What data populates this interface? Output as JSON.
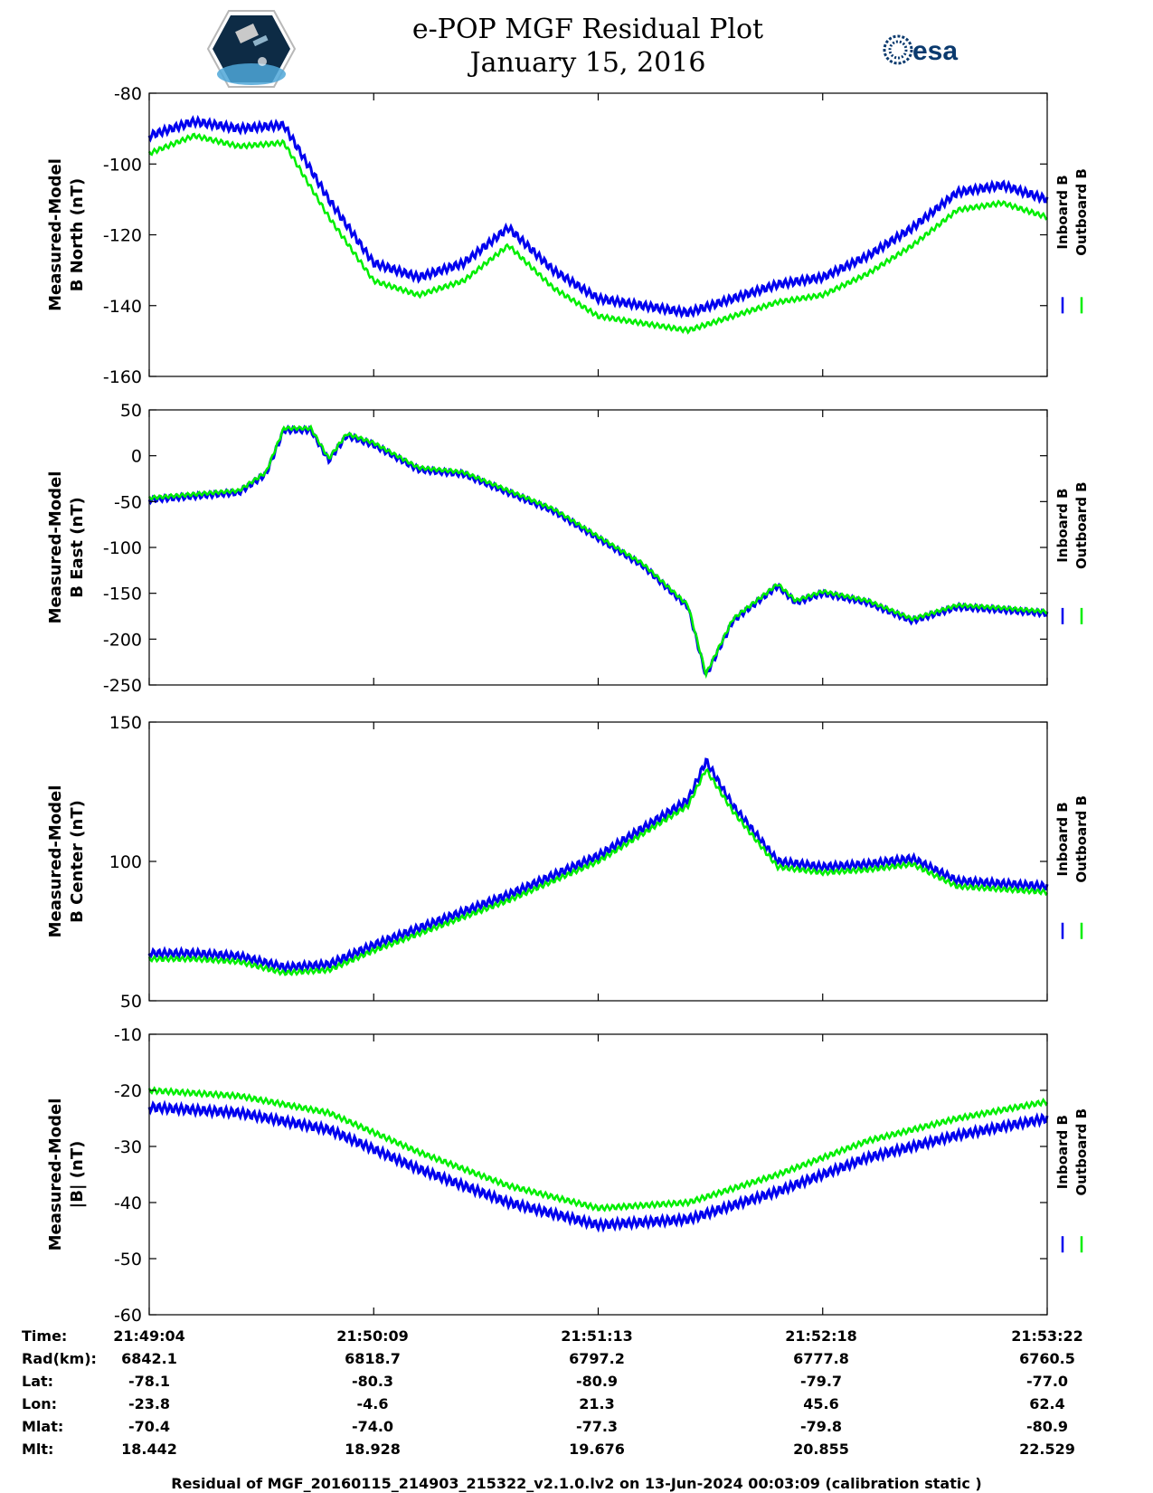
{
  "title": {
    "line1": "e-POP MGF Residual Plot",
    "line2": "January 15, 2016"
  },
  "logos": {
    "left": "cassiope-epop-logo",
    "right_text": "esa"
  },
  "colors": {
    "inboard": "#0000ee",
    "outboard": "#00ee00",
    "axis": "#000000"
  },
  "chart_data": [
    {
      "type": "line",
      "ylabel": [
        "Measured-Model",
        "B North (nT)"
      ],
      "ylim": [
        -160,
        -80
      ],
      "yticks": [
        -80,
        -100,
        -120,
        -140,
        -160
      ],
      "legend": [
        "Inboard B",
        "Outboard B"
      ],
      "x": [
        0,
        5,
        10,
        15,
        20,
        25,
        30,
        35,
        40,
        45,
        50,
        55,
        60,
        65,
        70,
        75,
        80,
        85,
        90,
        95,
        100
      ],
      "series": [
        {
          "name": "Inboard B",
          "values": [
            -92,
            -88,
            -90,
            -89,
            -110,
            -128,
            -132,
            -128,
            -118,
            -130,
            -138,
            -140,
            -142,
            -138,
            -134,
            -132,
            -126,
            -118,
            -108,
            -106,
            -110
          ]
        },
        {
          "name": "Outboard B",
          "values": [
            -97,
            -92,
            -95,
            -94,
            -115,
            -133,
            -137,
            -133,
            -123,
            -135,
            -143,
            -145,
            -147,
            -143,
            -139,
            -137,
            -131,
            -123,
            -113,
            -111,
            -115
          ]
        }
      ]
    },
    {
      "type": "line",
      "ylabel": [
        "Measured-Model",
        "B East (nT)"
      ],
      "ylim": [
        -250,
        50
      ],
      "yticks": [
        50,
        0,
        -50,
        -100,
        -150,
        -200,
        -250
      ],
      "legend": [
        "Inboard B",
        "Outboard B"
      ],
      "x": [
        0,
        5,
        10,
        13,
        15,
        18,
        20,
        22,
        25,
        30,
        35,
        40,
        45,
        50,
        55,
        60,
        62,
        65,
        70,
        72,
        75,
        80,
        85,
        90,
        95,
        100
      ],
      "series": [
        {
          "name": "Inboard B",
          "values": [
            -48,
            -44,
            -40,
            -20,
            28,
            28,
            -5,
            22,
            12,
            -15,
            -20,
            -40,
            -60,
            -90,
            -120,
            -165,
            -240,
            -180,
            -142,
            -160,
            -150,
            -160,
            -180,
            -165,
            -168,
            -172
          ]
        },
        {
          "name": "Outboard B",
          "values": [
            -46,
            -42,
            -38,
            -18,
            30,
            30,
            -3,
            24,
            14,
            -13,
            -18,
            -38,
            -58,
            -88,
            -118,
            -163,
            -238,
            -178,
            -140,
            -158,
            -148,
            -158,
            -178,
            -163,
            -166,
            -170
          ]
        }
      ]
    },
    {
      "type": "line",
      "ylabel": [
        "Measured-Model",
        "B Center (nT)"
      ],
      "ylim": [
        50,
        150
      ],
      "yticks": [
        150,
        100,
        50
      ],
      "legend": [
        "Inboard B",
        "Outboard B"
      ],
      "x": [
        0,
        5,
        10,
        15,
        20,
        25,
        30,
        35,
        40,
        45,
        50,
        55,
        60,
        62,
        65,
        70,
        75,
        80,
        85,
        90,
        95,
        100
      ],
      "series": [
        {
          "name": "Inboard B",
          "values": [
            67,
            67,
            66,
            62,
            63,
            70,
            76,
            82,
            88,
            95,
            102,
            112,
            122,
            136,
            120,
            100,
            98,
            99,
            101,
            93,
            92,
            91
          ]
        },
        {
          "name": "Outboard B",
          "values": [
            65,
            65,
            64,
            60,
            61,
            68,
            74,
            80,
            86,
            93,
            100,
            110,
            120,
            133,
            118,
            98,
            96,
            97,
            99,
            91,
            90,
            89
          ]
        }
      ]
    },
    {
      "type": "line",
      "ylabel": [
        "Measured-Model",
        "|B| (nT)"
      ],
      "ylim": [
        -60,
        -10
      ],
      "yticks": [
        -10,
        -20,
        -30,
        -40,
        -50,
        -60
      ],
      "legend": [
        "Inboard B",
        "Outboard B"
      ],
      "x": [
        0,
        10,
        20,
        30,
        40,
        50,
        60,
        70,
        80,
        90,
        100
      ],
      "series": [
        {
          "name": "Inboard B",
          "values": [
            -23,
            -24,
            -27,
            -34,
            -40,
            -44,
            -43,
            -38,
            -32,
            -28,
            -25
          ]
        },
        {
          "name": "Outboard B",
          "values": [
            -20,
            -21,
            -24,
            -31,
            -37,
            -41,
            -40,
            -35,
            -29,
            -25,
            -22
          ]
        }
      ]
    }
  ],
  "footer": {
    "labels": [
      "Time:",
      "Rad(km):",
      "Lat:",
      "Lon:",
      "Mlat:",
      "Mlt:"
    ],
    "columns": [
      [
        "21:49:04",
        "6842.1",
        "-78.1",
        "-23.8",
        "-70.4",
        "18.442"
      ],
      [
        "21:50:09",
        "6818.7",
        "-80.3",
        "-4.6",
        "-74.0",
        "18.928"
      ],
      [
        "21:51:13",
        "6797.2",
        "-80.9",
        "21.3",
        "-77.3",
        "19.676"
      ],
      [
        "21:52:18",
        "6777.8",
        "-79.7",
        "45.6",
        "-79.8",
        "20.855"
      ],
      [
        "21:53:22",
        "6760.5",
        "-77.0",
        "62.4",
        "-80.9",
        "22.529"
      ]
    ],
    "note": "Residual of MGF_20160115_214903_215322_v2.1.0.lv2 on 13-Jun-2024 00:03:09 (calibration static )"
  }
}
